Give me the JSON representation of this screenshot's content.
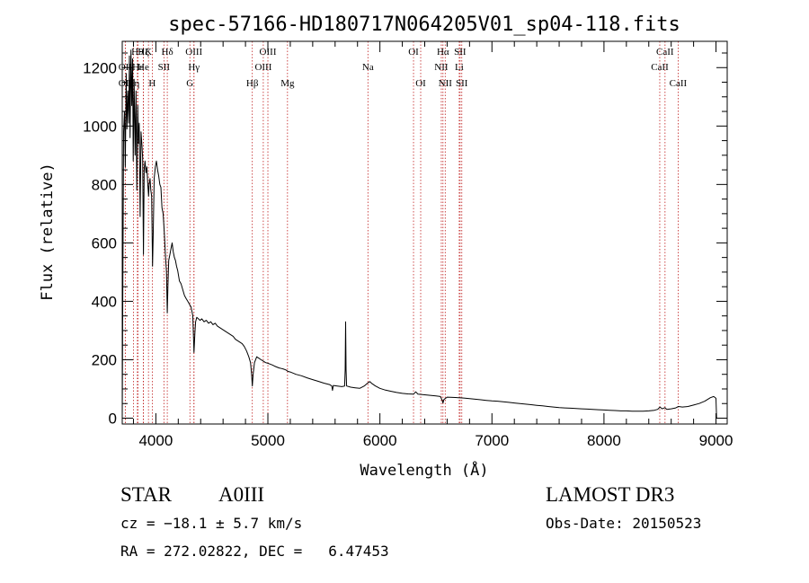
{
  "chart_data": {
    "type": "line",
    "title": "spec-57166-HD180717N064205V01_sp04-118.fits",
    "xlabel": "Wavelength (Å)",
    "ylabel": "Flux (relative)",
    "xlim": [
      3700,
      9100
    ],
    "ylim": [
      -20,
      1290
    ],
    "x_ticks": [
      4000,
      5000,
      6000,
      7000,
      8000,
      9000
    ],
    "x_tick_labels": [
      "4000",
      "5000",
      "6000",
      "7000",
      "8000",
      "9000"
    ],
    "y_ticks": [
      0,
      200,
      400,
      600,
      800,
      1000,
      1200
    ],
    "y_tick_labels": [
      "0",
      "200",
      "400",
      "600",
      "800",
      "1000",
      "1200"
    ],
    "line_color": "#000000",
    "marker_color": "#c02020",
    "series": [
      {
        "name": "spectrum",
        "points": [
          [
            3700,
            0
          ],
          [
            3705,
            420
          ],
          [
            3712,
            980
          ],
          [
            3720,
            1050
          ],
          [
            3727,
            860
          ],
          [
            3735,
            1180
          ],
          [
            3742,
            990
          ],
          [
            3750,
            1120
          ],
          [
            3757,
            1010
          ],
          [
            3764,
            1240
          ],
          [
            3770,
            960
          ],
          [
            3778,
            1260
          ],
          [
            3785,
            1070
          ],
          [
            3792,
            1230
          ],
          [
            3798,
            880
          ],
          [
            3806,
            1160
          ],
          [
            3815,
            900
          ],
          [
            3823,
            1120
          ],
          [
            3830,
            780
          ],
          [
            3838,
            1070
          ],
          [
            3845,
            940
          ],
          [
            3852,
            1010
          ],
          [
            3860,
            690
          ],
          [
            3868,
            980
          ],
          [
            3875,
            940
          ],
          [
            3882,
            890
          ],
          [
            3889,
            560
          ],
          [
            3896,
            850
          ],
          [
            3903,
            880
          ],
          [
            3912,
            840
          ],
          [
            3920,
            860
          ],
          [
            3928,
            800
          ],
          [
            3935,
            760
          ],
          [
            3940,
            800
          ],
          [
            3948,
            820
          ],
          [
            3955,
            780
          ],
          [
            3962,
            760
          ],
          [
            3970,
            520
          ],
          [
            3976,
            620
          ],
          [
            3985,
            820
          ],
          [
            3995,
            860
          ],
          [
            4005,
            880
          ],
          [
            4015,
            850
          ],
          [
            4025,
            830
          ],
          [
            4035,
            800
          ],
          [
            4045,
            790
          ],
          [
            4055,
            720
          ],
          [
            4065,
            700
          ],
          [
            4075,
            640
          ],
          [
            4085,
            560
          ],
          [
            4095,
            500
          ],
          [
            4102,
            360
          ],
          [
            4108,
            450
          ],
          [
            4115,
            540
          ],
          [
            4125,
            560
          ],
          [
            4135,
            580
          ],
          [
            4145,
            600
          ],
          [
            4155,
            570
          ],
          [
            4165,
            550
          ],
          [
            4175,
            540
          ],
          [
            4185,
            520
          ],
          [
            4195,
            505
          ],
          [
            4210,
            470
          ],
          [
            4225,
            460
          ],
          [
            4240,
            440
          ],
          [
            4255,
            420
          ],
          [
            4270,
            410
          ],
          [
            4285,
            400
          ],
          [
            4300,
            390
          ],
          [
            4315,
            380
          ],
          [
            4330,
            350
          ],
          [
            4340,
            225
          ],
          [
            4348,
            290
          ],
          [
            4355,
            330
          ],
          [
            4365,
            345
          ],
          [
            4380,
            340
          ],
          [
            4395,
            335
          ],
          [
            4410,
            340
          ],
          [
            4430,
            330
          ],
          [
            4450,
            335
          ],
          [
            4470,
            325
          ],
          [
            4490,
            330
          ],
          [
            4510,
            320
          ],
          [
            4530,
            325
          ],
          [
            4550,
            315
          ],
          [
            4570,
            310
          ],
          [
            4590,
            305
          ],
          [
            4610,
            300
          ],
          [
            4630,
            295
          ],
          [
            4650,
            290
          ],
          [
            4670,
            285
          ],
          [
            4690,
            280
          ],
          [
            4710,
            270
          ],
          [
            4730,
            265
          ],
          [
            4750,
            260
          ],
          [
            4770,
            255
          ],
          [
            4790,
            245
          ],
          [
            4810,
            230
          ],
          [
            4830,
            210
          ],
          [
            4845,
            190
          ],
          [
            4855,
            150
          ],
          [
            4861,
            110
          ],
          [
            4868,
            150
          ],
          [
            4880,
            190
          ],
          [
            4900,
            210
          ],
          [
            4920,
            205
          ],
          [
            4940,
            200
          ],
          [
            4960,
            195
          ],
          [
            4980,
            190
          ],
          [
            5000,
            188
          ],
          [
            5020,
            185
          ],
          [
            5040,
            182
          ],
          [
            5060,
            178
          ],
          [
            5080,
            175
          ],
          [
            5100,
            172
          ],
          [
            5120,
            170
          ],
          [
            5140,
            168
          ],
          [
            5160,
            165
          ],
          [
            5180,
            160
          ],
          [
            5200,
            158
          ],
          [
            5250,
            150
          ],
          [
            5300,
            145
          ],
          [
            5350,
            138
          ],
          [
            5400,
            132
          ],
          [
            5450,
            126
          ],
          [
            5500,
            120
          ],
          [
            5550,
            115
          ],
          [
            5570,
            110
          ],
          [
            5577,
            95
          ],
          [
            5584,
            112
          ],
          [
            5620,
            110
          ],
          [
            5660,
            108
          ],
          [
            5685,
            110
          ],
          [
            5690,
            165
          ],
          [
            5694,
            330
          ],
          [
            5698,
            165
          ],
          [
            5703,
            110
          ],
          [
            5740,
            106
          ],
          [
            5780,
            104
          ],
          [
            5820,
            102
          ],
          [
            5860,
            110
          ],
          [
            5890,
            120
          ],
          [
            5910,
            125
          ],
          [
            5930,
            118
          ],
          [
            5960,
            110
          ],
          [
            6000,
            102
          ],
          [
            6050,
            96
          ],
          [
            6100,
            92
          ],
          [
            6150,
            88
          ],
          [
            6200,
            85
          ],
          [
            6250,
            83
          ],
          [
            6300,
            82
          ],
          [
            6320,
            90
          ],
          [
            6340,
            82
          ],
          [
            6400,
            80
          ],
          [
            6450,
            78
          ],
          [
            6500,
            76
          ],
          [
            6540,
            74
          ],
          [
            6555,
            62
          ],
          [
            6563,
            52
          ],
          [
            6572,
            64
          ],
          [
            6600,
            72
          ],
          [
            6650,
            71
          ],
          [
            6700,
            70
          ],
          [
            6750,
            69
          ],
          [
            6800,
            67
          ],
          [
            6850,
            65
          ],
          [
            6900,
            63
          ],
          [
            6950,
            61
          ],
          [
            7000,
            59
          ],
          [
            7050,
            58
          ],
          [
            7100,
            56
          ],
          [
            7150,
            54
          ],
          [
            7200,
            52
          ],
          [
            7250,
            50
          ],
          [
            7300,
            48
          ],
          [
            7350,
            46
          ],
          [
            7400,
            44
          ],
          [
            7450,
            42
          ],
          [
            7500,
            40
          ],
          [
            7550,
            38
          ],
          [
            7600,
            36
          ],
          [
            7650,
            35
          ],
          [
            7700,
            34
          ],
          [
            7750,
            33
          ],
          [
            7800,
            32
          ],
          [
            7850,
            31
          ],
          [
            7900,
            30
          ],
          [
            7950,
            29
          ],
          [
            8000,
            28
          ],
          [
            8050,
            27
          ],
          [
            8100,
            26
          ],
          [
            8150,
            25
          ],
          [
            8200,
            25
          ],
          [
            8250,
            24
          ],
          [
            8300,
            24
          ],
          [
            8350,
            24
          ],
          [
            8400,
            25
          ],
          [
            8450,
            27
          ],
          [
            8480,
            30
          ],
          [
            8500,
            38
          ],
          [
            8520,
            32
          ],
          [
            8545,
            36
          ],
          [
            8560,
            30
          ],
          [
            8600,
            32
          ],
          [
            8640,
            35
          ],
          [
            8665,
            40
          ],
          [
            8700,
            38
          ],
          [
            8750,
            40
          ],
          [
            8800,
            45
          ],
          [
            8850,
            50
          ],
          [
            8900,
            58
          ],
          [
            8950,
            70
          ],
          [
            8980,
            74
          ],
          [
            9000,
            68
          ],
          [
            9005,
            0
          ]
        ]
      }
    ],
    "line_markers": [
      {
        "label": "H9",
        "x": 3835,
        "row": 0
      },
      {
        "label": "Hζ",
        "x": 3889,
        "row": 0
      },
      {
        "label": "K",
        "x": 3934,
        "row": 0
      },
      {
        "label": "Hδ",
        "x": 4102,
        "row": 0
      },
      {
        "label": "OIII",
        "x": 4340,
        "row": 0
      },
      {
        "label": "OIII",
        "x": 5000,
        "row": 0
      },
      {
        "label": "OI",
        "x": 6300,
        "row": 0
      },
      {
        "label": "Hα",
        "x": 6563,
        "row": 0
      },
      {
        "label": "SII",
        "x": 6716,
        "row": 0
      },
      {
        "label": "CaII",
        "x": 8545,
        "row": 0
      },
      {
        "label": "OII",
        "x": 3727,
        "row": 1
      },
      {
        "label": "Hε",
        "x": 3840,
        "row": 1
      },
      {
        "label": "He",
        "x": 3888,
        "row": 1
      },
      {
        "label": "SII",
        "x": 4072,
        "row": 1
      },
      {
        "label": "Hγ",
        "x": 4340,
        "row": 1
      },
      {
        "label": "OIII",
        "x": 4959,
        "row": 1
      },
      {
        "label": "Na",
        "x": 5893,
        "row": 1
      },
      {
        "label": "NII",
        "x": 6548,
        "row": 1
      },
      {
        "label": "Li",
        "x": 6708,
        "row": 1
      },
      {
        "label": "CaII",
        "x": 8498,
        "row": 1
      },
      {
        "label": "OII",
        "x": 3727,
        "row": 2
      },
      {
        "label": "Hη",
        "x": 3800,
        "row": 2
      },
      {
        "label": "H",
        "x": 3968,
        "row": 2
      },
      {
        "label": "G",
        "x": 4304,
        "row": 2
      },
      {
        "label": "Hβ",
        "x": 4861,
        "row": 2
      },
      {
        "label": "Mg",
        "x": 5175,
        "row": 2
      },
      {
        "label": "OI",
        "x": 6364,
        "row": 2
      },
      {
        "label": "NII",
        "x": 6583,
        "row": 2
      },
      {
        "label": "SII",
        "x": 6731,
        "row": 2
      },
      {
        "label": "CaII",
        "x": 8662,
        "row": 2
      }
    ]
  },
  "info": {
    "object_type": "STAR",
    "spectral_class": "A0III",
    "survey": "LAMOST DR3",
    "velocity": "cz = −18.1 ± 5.7 km/s",
    "obs_date": "Obs-Date: 20150523",
    "coordinates": "RA = 272.02822, DEC =   6.47453"
  }
}
